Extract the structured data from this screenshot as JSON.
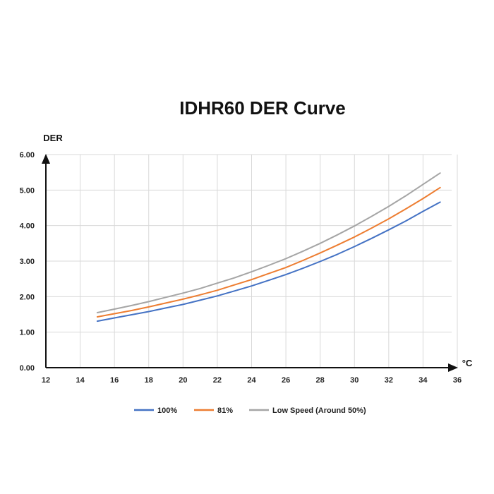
{
  "chart_data": {
    "type": "line",
    "title": "IDHR60  DER Curve",
    "ylabel": "DER",
    "xlabel": "°C",
    "xlim": [
      12,
      36
    ],
    "ylim": [
      0,
      6
    ],
    "x_ticks": [
      "12",
      "14",
      "16",
      "18",
      "20",
      "22",
      "24",
      "26",
      "28",
      "30",
      "32",
      "34",
      "36"
    ],
    "y_ticks": [
      "0.00",
      "1.00",
      "2.00",
      "3.00",
      "4.00",
      "5.00",
      "6.00"
    ],
    "grid": true,
    "legend_position": "bottom",
    "x": [
      15,
      16,
      17,
      18,
      19,
      20,
      21,
      22,
      23,
      24,
      25,
      26,
      27,
      28,
      29,
      30,
      31,
      32,
      33,
      34,
      35
    ],
    "series": [
      {
        "name": "100%",
        "color": "#4472c4",
        "values": [
          1.31,
          1.4,
          1.49,
          1.58,
          1.68,
          1.78,
          1.9,
          2.02,
          2.16,
          2.3,
          2.46,
          2.62,
          2.8,
          2.99,
          3.19,
          3.41,
          3.64,
          3.88,
          4.13,
          4.4,
          4.66
        ]
      },
      {
        "name": "81%",
        "color": "#ed7d31",
        "values": [
          1.43,
          1.52,
          1.61,
          1.71,
          1.82,
          1.93,
          2.05,
          2.18,
          2.33,
          2.48,
          2.65,
          2.82,
          3.02,
          3.23,
          3.45,
          3.68,
          3.93,
          4.19,
          4.47,
          4.76,
          5.07
        ]
      },
      {
        "name": "Low Speed (Around 50%)",
        "color": "#a5a5a5",
        "values": [
          1.55,
          1.65,
          1.75,
          1.86,
          1.98,
          2.1,
          2.23,
          2.38,
          2.53,
          2.7,
          2.88,
          3.07,
          3.28,
          3.5,
          3.74,
          3.99,
          4.26,
          4.54,
          4.84,
          5.16,
          5.48
        ]
      }
    ]
  }
}
